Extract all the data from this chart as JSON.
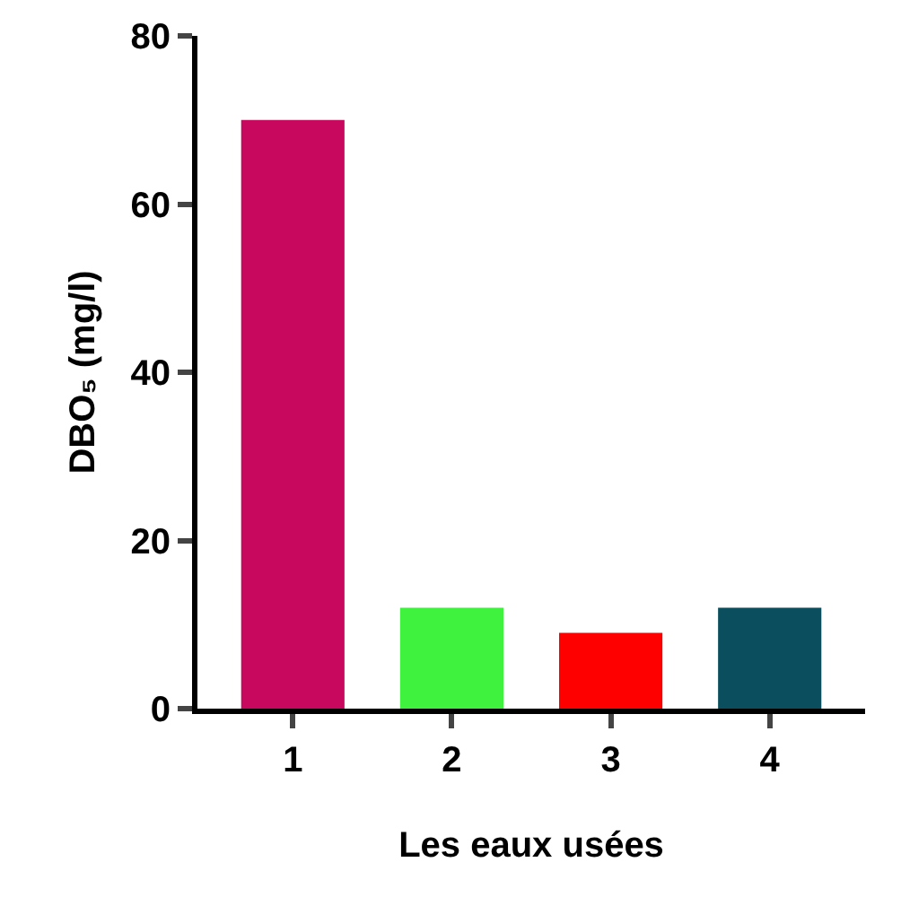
{
  "chart_data": {
    "type": "bar",
    "xlabel": "Les eaux usées",
    "ylabel": "DBO₅ (mg/l)",
    "categories": [
      "1",
      "2",
      "3",
      "4"
    ],
    "values": [
      70,
      12,
      9,
      12
    ],
    "colors": [
      "#c8075e",
      "#3ef23e",
      "#fe0000",
      "#0b4f5e"
    ],
    "ylim": [
      0,
      80
    ],
    "yticks": [
      0,
      20,
      40,
      60,
      80
    ],
    "grid": false
  }
}
